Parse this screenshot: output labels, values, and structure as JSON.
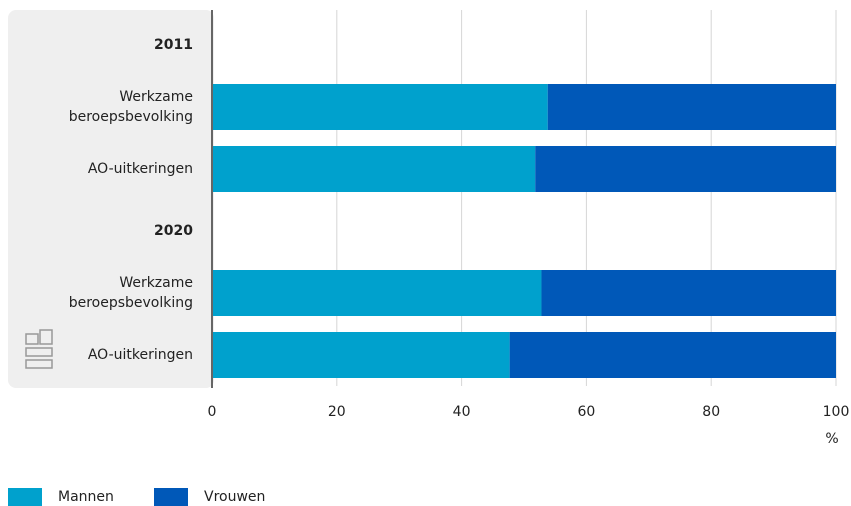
{
  "chart_data": {
    "type": "stacked-bar-horizontal",
    "categories": [
      "2011",
      "Werkzame beroepsbevolking",
      "AO-uitkeringen",
      "2020",
      "Werkzame beroepsbevolking",
      "AO-uitkeringen"
    ],
    "series": [
      {
        "name": "Mannen",
        "color": "#00a1cd",
        "values": [
          null,
          53.8,
          51.8,
          null,
          52.8,
          47.7
        ]
      },
      {
        "name": "Vrouwen",
        "color": "#0058b8",
        "values": [
          null,
          46.2,
          48.2,
          null,
          47.2,
          52.3
        ]
      }
    ],
    "xlim": [
      0,
      100
    ],
    "xticks": [
      0,
      20,
      40,
      60,
      80,
      100
    ],
    "x_unit": "%",
    "grid": true
  }
}
